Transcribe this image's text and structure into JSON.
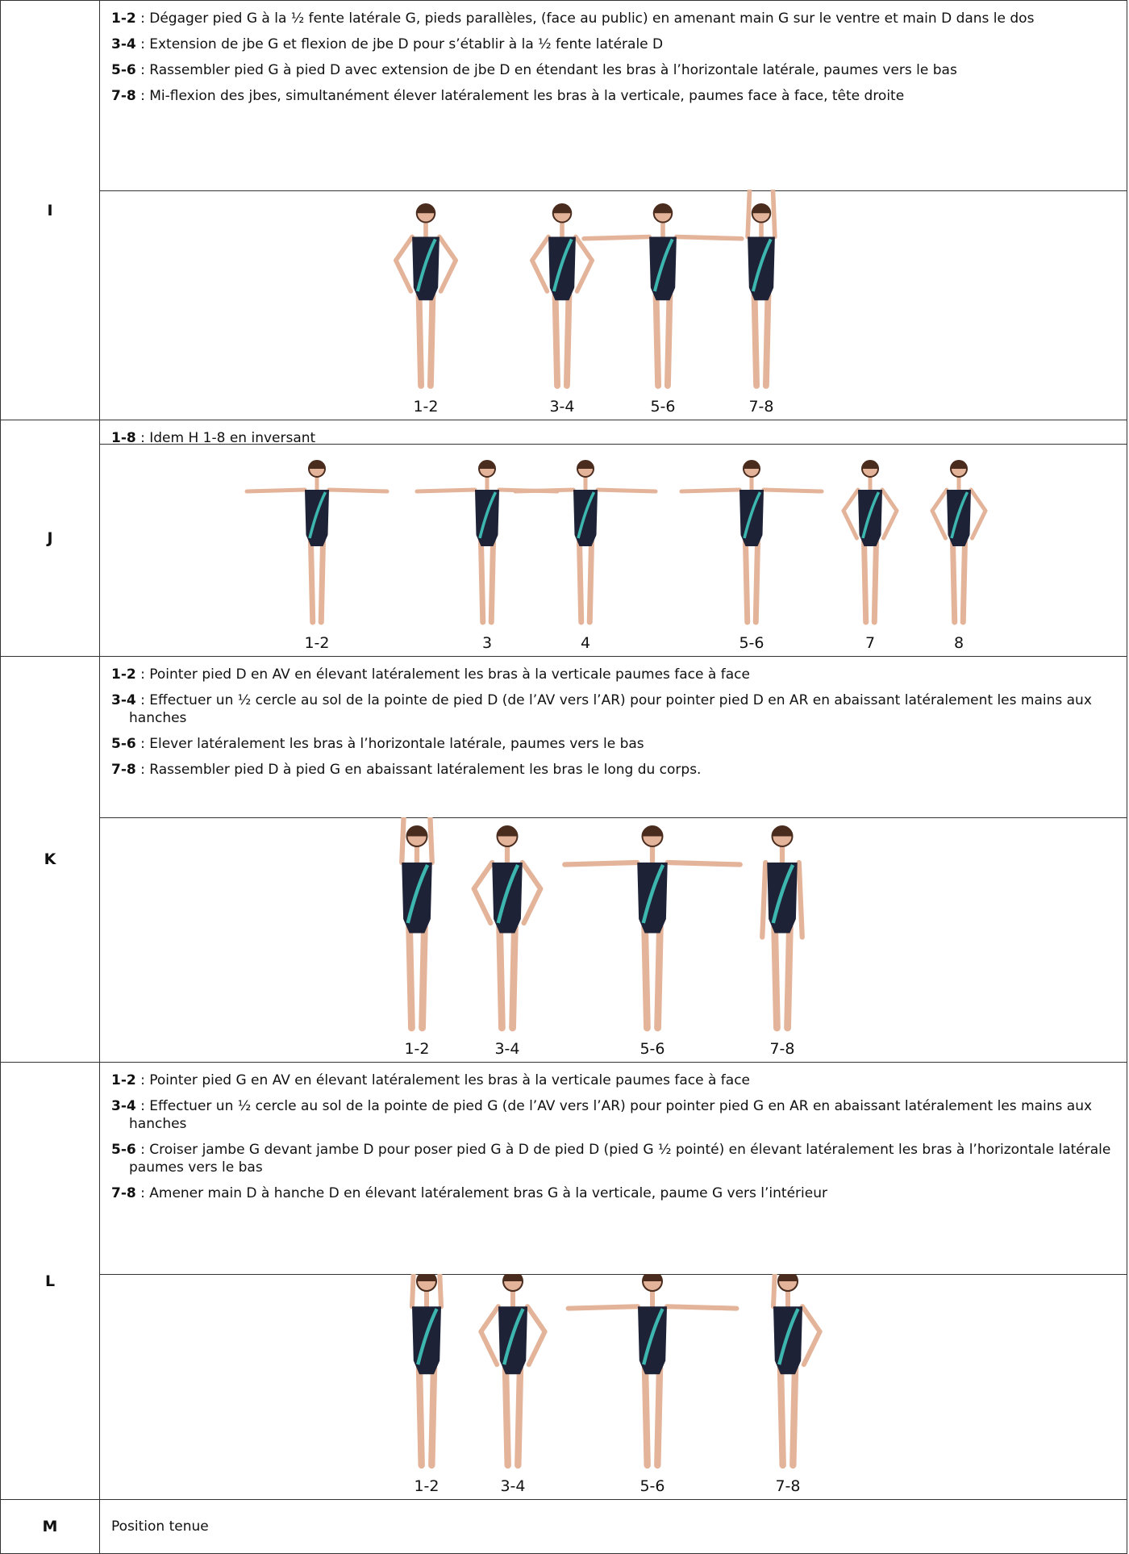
{
  "rows": [
    {
      "label": "I",
      "steps": [
        {
          "count": "1-2",
          "text": " : Dégager pied G à la ½ fente latérale G, pieds parallèles,  (face au public) en amenant main G sur le ventre et main D dans le dos"
        },
        {
          "count": "3-4",
          "text": " : Extension de jbe G et flexion de jbe D pour s’établir à la ½ fente latérale D"
        },
        {
          "count": "5-6",
          "text": " : Rassembler pied G à pied D avec extension de jbe D en étendant les bras à l’horizontale latérale, paumes vers le bas"
        },
        {
          "count": "7-8",
          "text": " : Mi-flexion des jbes, simultanément élever latéralement les bras à la verticale, paumes face à face, tête droite"
        }
      ],
      "figures": [
        "1-2",
        "3-4",
        "5-6",
        "7-8"
      ]
    },
    {
      "label": "J",
      "steps": [
        {
          "count": "1-8",
          "text": " : Idem H 1-8 en inversant"
        }
      ],
      "figures": [
        "1-2",
        "3",
        "4",
        "5-6",
        "7",
        "8"
      ]
    },
    {
      "label": "K",
      "steps": [
        {
          "count": "1-2",
          "text": " : Pointer pied D en AV en élevant latéralement les bras à la verticale paumes face à face"
        },
        {
          "count": "3-4",
          "text": " : Effectuer un ½ cercle au sol de la pointe de pied D (de l’AV vers l’AR) pour pointer pied D en AR en abaissant latéralement les mains aux hanches"
        },
        {
          "count": "5-6",
          "text": " : Elever latéralement les bras à l’horizontale latérale, paumes vers le bas"
        },
        {
          "count": "7-8",
          "text": "  : Rassembler pied D à pied G en abaissant latéralement les bras le long du corps."
        }
      ],
      "figures": [
        "1-2",
        "3-4",
        "5-6",
        "7-8"
      ]
    },
    {
      "label": "L",
      "steps": [
        {
          "count": "1-2",
          "text": " : Pointer pied G en AV en élevant latéralement les bras à la verticale paumes face à face"
        },
        {
          "count": "3-4",
          "text": " : Effectuer un ½ cercle au sol de la pointe de pied G (de l’AV vers l’AR) pour pointer pied G en AR en abaissant latéralement les mains aux hanches"
        },
        {
          "count": "5-6",
          "text": " : Croiser jambe G devant jambe D pour poser pied G à D de pied D (pied G ½ pointé) en élevant latéralement les bras à l’horizontale latérale paumes  vers le bas"
        },
        {
          "count": "7-8",
          "text": "  : Amener main D à hanche D en élevant latéralement bras G à la verticale, paume G vers l’intérieur"
        }
      ],
      "figures": [
        "1-2",
        "3-4",
        "5-6",
        "7-8"
      ]
    },
    {
      "label": "M",
      "text": "Position tenue"
    }
  ]
}
